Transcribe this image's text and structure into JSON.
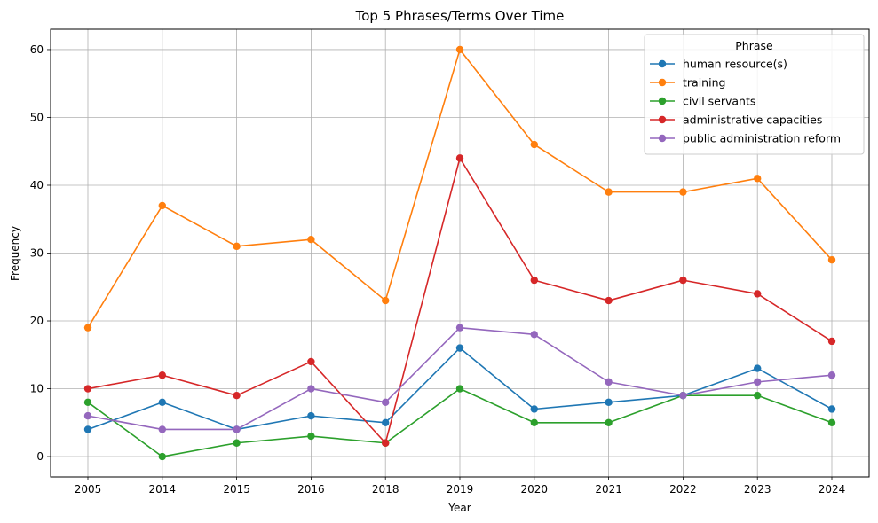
{
  "chart_data": {
    "type": "line",
    "title": "Top 5 Phrases/Terms Over Time",
    "xlabel": "Year",
    "ylabel": "Frequency",
    "categories": [
      "2005",
      "2014",
      "2015",
      "2016",
      "2018",
      "2019",
      "2020",
      "2021",
      "2022",
      "2023",
      "2024"
    ],
    "ylim": [
      -3,
      63
    ],
    "yticks": [
      0,
      10,
      20,
      30,
      40,
      50,
      60
    ],
    "grid": true,
    "legend": {
      "title": "Phrase",
      "placement": "top-right"
    },
    "series": [
      {
        "name": "human resource(s)",
        "color": "#1f77b4",
        "values": [
          4,
          8,
          4,
          6,
          5,
          16,
          7,
          8,
          9,
          13,
          7
        ]
      },
      {
        "name": "training",
        "color": "#ff7f0e",
        "values": [
          19,
          37,
          31,
          32,
          23,
          60,
          46,
          39,
          39,
          41,
          29
        ]
      },
      {
        "name": "civil servants",
        "color": "#2ca02c",
        "values": [
          8,
          0,
          2,
          3,
          2,
          10,
          5,
          5,
          9,
          9,
          5
        ]
      },
      {
        "name": "administrative capacities",
        "color": "#d62728",
        "values": [
          10,
          12,
          9,
          14,
          2,
          44,
          26,
          23,
          26,
          24,
          17
        ]
      },
      {
        "name": "public administration reform",
        "color": "#9467bd",
        "values": [
          6,
          4,
          4,
          10,
          8,
          19,
          18,
          11,
          9,
          11,
          12
        ]
      }
    ]
  }
}
